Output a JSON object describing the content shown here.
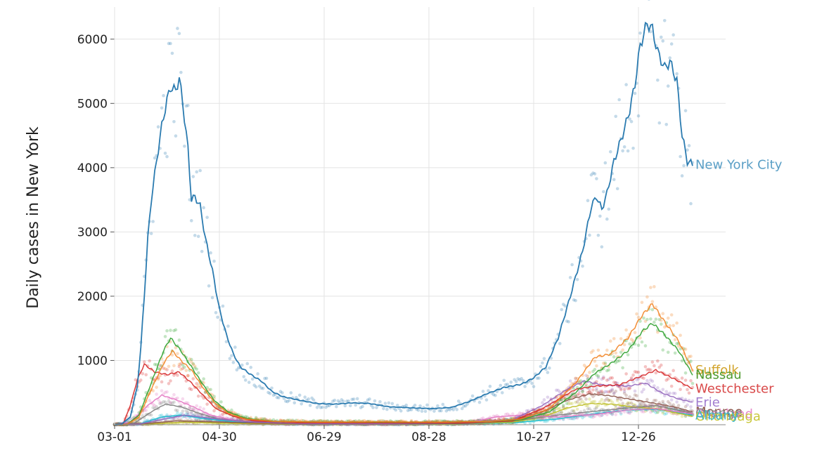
{
  "chart_data": {
    "type": "line",
    "title": "",
    "xlabel": "",
    "ylabel": "Daily cases in New York",
    "grid": true,
    "legend": "direct-labels-right",
    "x_start": "2020-03-01",
    "x_end": "2021-01-31",
    "ylim": [
      0,
      6500
    ],
    "x_ticks": [
      "03-01",
      "04-30",
      "06-29",
      "08-28",
      "10-27",
      "12-26"
    ],
    "y_ticks": [
      1000,
      2000,
      3000,
      4000,
      5000,
      6000
    ],
    "series": [
      {
        "name": "New York City",
        "color": "#2b7bb0",
        "label_color": "#5a9fc6",
        "points": [
          [
            "2020-03-01",
            0
          ],
          [
            "2020-03-05",
            10
          ],
          [
            "2020-03-10",
            120
          ],
          [
            "2020-03-14",
            600
          ],
          [
            "2020-03-16",
            1200
          ],
          [
            "2020-03-18",
            2000
          ],
          [
            "2020-03-20",
            2900
          ],
          [
            "2020-03-22",
            3500
          ],
          [
            "2020-03-25",
            4100
          ],
          [
            "2020-03-28",
            4650
          ],
          [
            "2020-03-31",
            5050
          ],
          [
            "2020-04-02",
            5250
          ],
          [
            "2020-04-05",
            5200
          ],
          [
            "2020-04-07",
            5400
          ],
          [
            "2020-04-09",
            5000
          ],
          [
            "2020-04-12",
            4300
          ],
          [
            "2020-04-14",
            3500
          ],
          [
            "2020-04-16",
            3550
          ],
          [
            "2020-04-19",
            3400
          ],
          [
            "2020-04-22",
            2900
          ],
          [
            "2020-04-26",
            2400
          ],
          [
            "2020-04-30",
            1800
          ],
          [
            "2020-05-04",
            1400
          ],
          [
            "2020-05-08",
            1100
          ],
          [
            "2020-05-12",
            900
          ],
          [
            "2020-05-18",
            780
          ],
          [
            "2020-05-24",
            680
          ],
          [
            "2020-05-30",
            520
          ],
          [
            "2020-06-05",
            440
          ],
          [
            "2020-06-15",
            380
          ],
          [
            "2020-06-25",
            330
          ],
          [
            "2020-07-05",
            320
          ],
          [
            "2020-07-15",
            340
          ],
          [
            "2020-07-25",
            330
          ],
          [
            "2020-08-05",
            280
          ],
          [
            "2020-08-20",
            260
          ],
          [
            "2020-08-30",
            250
          ],
          [
            "2020-09-10",
            270
          ],
          [
            "2020-09-20",
            360
          ],
          [
            "2020-09-30",
            480
          ],
          [
            "2020-10-10",
            580
          ],
          [
            "2020-10-20",
            630
          ],
          [
            "2020-10-27",
            730
          ],
          [
            "2020-11-03",
            900
          ],
          [
            "2020-11-10",
            1350
          ],
          [
            "2020-11-17",
            2000
          ],
          [
            "2020-11-24",
            2700
          ],
          [
            "2020-11-29",
            3400
          ],
          [
            "2020-12-02",
            3550
          ],
          [
            "2020-12-05",
            3350
          ],
          [
            "2020-12-08",
            3600
          ],
          [
            "2020-12-12",
            4100
          ],
          [
            "2020-12-15",
            4350
          ],
          [
            "2020-12-18",
            4600
          ],
          [
            "2020-12-21",
            4900
          ],
          [
            "2020-12-24",
            5300
          ],
          [
            "2020-12-27",
            5900
          ],
          [
            "2020-12-31",
            6250
          ],
          [
            "2021-01-03",
            6150
          ],
          [
            "2021-01-06",
            5800
          ],
          [
            "2021-01-10",
            5550
          ],
          [
            "2021-01-13",
            5650
          ],
          [
            "2021-01-17",
            5350
          ],
          [
            "2021-01-20",
            4500
          ],
          [
            "2021-01-23",
            4100
          ],
          [
            "2021-01-26",
            4050
          ]
        ]
      },
      {
        "name": "Suffolk",
        "color": "#f28322",
        "label_color": "#d2a32a",
        "points": [
          [
            "2020-03-01",
            0
          ],
          [
            "2020-03-08",
            5
          ],
          [
            "2020-03-15",
            120
          ],
          [
            "2020-03-22",
            550
          ],
          [
            "2020-03-29",
            950
          ],
          [
            "2020-04-03",
            1150
          ],
          [
            "2020-04-08",
            1000
          ],
          [
            "2020-04-14",
            850
          ],
          [
            "2020-04-20",
            600
          ],
          [
            "2020-04-27",
            350
          ],
          [
            "2020-05-05",
            180
          ],
          [
            "2020-05-15",
            90
          ],
          [
            "2020-06-01",
            50
          ],
          [
            "2020-07-01",
            40
          ],
          [
            "2020-08-01",
            45
          ],
          [
            "2020-09-01",
            40
          ],
          [
            "2020-10-01",
            50
          ],
          [
            "2020-10-20",
            90
          ],
          [
            "2020-11-05",
            250
          ],
          [
            "2020-11-20",
            650
          ],
          [
            "2020-12-01",
            1050
          ],
          [
            "2020-12-10",
            1100
          ],
          [
            "2020-12-20",
            1350
          ],
          [
            "2020-12-28",
            1700
          ],
          [
            "2021-01-03",
            1880
          ],
          [
            "2021-01-10",
            1600
          ],
          [
            "2021-01-18",
            1300
          ],
          [
            "2021-01-26",
            850
          ]
        ]
      },
      {
        "name": "Nassau",
        "color": "#2ca02c",
        "label_color": "#4f9a2e",
        "points": [
          [
            "2020-03-01",
            0
          ],
          [
            "2020-03-08",
            5
          ],
          [
            "2020-03-15",
            150
          ],
          [
            "2020-03-22",
            650
          ],
          [
            "2020-03-29",
            1150
          ],
          [
            "2020-04-02",
            1350
          ],
          [
            "2020-04-08",
            1150
          ],
          [
            "2020-04-14",
            900
          ],
          [
            "2020-04-20",
            650
          ],
          [
            "2020-04-27",
            380
          ],
          [
            "2020-05-05",
            200
          ],
          [
            "2020-05-15",
            100
          ],
          [
            "2020-06-01",
            50
          ],
          [
            "2020-07-01",
            40
          ],
          [
            "2020-08-01",
            40
          ],
          [
            "2020-09-01",
            40
          ],
          [
            "2020-10-01",
            50
          ],
          [
            "2020-10-20",
            80
          ],
          [
            "2020-11-05",
            200
          ],
          [
            "2020-11-20",
            500
          ],
          [
            "2020-12-01",
            800
          ],
          [
            "2020-12-10",
            950
          ],
          [
            "2020-12-20",
            1150
          ],
          [
            "2020-12-28",
            1450
          ],
          [
            "2021-01-03",
            1580
          ],
          [
            "2021-01-10",
            1400
          ],
          [
            "2021-01-18",
            1150
          ],
          [
            "2021-01-26",
            780
          ]
        ]
      },
      {
        "name": "Westchester",
        "color": "#d62728",
        "label_color": "#d94a4a",
        "points": [
          [
            "2020-03-01",
            0
          ],
          [
            "2020-03-06",
            20
          ],
          [
            "2020-03-10",
            300
          ],
          [
            "2020-03-14",
            700
          ],
          [
            "2020-03-18",
            940
          ],
          [
            "2020-03-24",
            820
          ],
          [
            "2020-03-31",
            780
          ],
          [
            "2020-04-07",
            820
          ],
          [
            "2020-04-14",
            650
          ],
          [
            "2020-04-21",
            450
          ],
          [
            "2020-04-28",
            250
          ],
          [
            "2020-05-08",
            130
          ],
          [
            "2020-05-20",
            60
          ],
          [
            "2020-06-15",
            30
          ],
          [
            "2020-08-01",
            30
          ],
          [
            "2020-09-15",
            30
          ],
          [
            "2020-10-15",
            60
          ],
          [
            "2020-11-01",
            250
          ],
          [
            "2020-11-20",
            550
          ],
          [
            "2020-12-01",
            600
          ],
          [
            "2020-12-15",
            620
          ],
          [
            "2020-12-28",
            760
          ],
          [
            "2021-01-05",
            850
          ],
          [
            "2021-01-15",
            720
          ],
          [
            "2021-01-26",
            560
          ]
        ]
      },
      {
        "name": "Erie",
        "color": "#9467bd",
        "label_color": "#a17ccf",
        "points": [
          [
            "2020-03-01",
            0
          ],
          [
            "2020-03-15",
            10
          ],
          [
            "2020-03-28",
            80
          ],
          [
            "2020-04-10",
            150
          ],
          [
            "2020-04-25",
            100
          ],
          [
            "2020-05-15",
            50
          ],
          [
            "2020-06-15",
            20
          ],
          [
            "2020-08-01",
            20
          ],
          [
            "2020-09-15",
            30
          ],
          [
            "2020-10-15",
            80
          ],
          [
            "2020-11-01",
            300
          ],
          [
            "2020-11-15",
            550
          ],
          [
            "2020-11-25",
            680
          ],
          [
            "2020-12-05",
            620
          ],
          [
            "2020-12-20",
            600
          ],
          [
            "2020-12-30",
            650
          ],
          [
            "2021-01-08",
            500
          ],
          [
            "2021-01-18",
            400
          ],
          [
            "2021-01-26",
            350
          ]
        ]
      },
      {
        "name": "Monroe",
        "color": "#8c564b",
        "label_color": "#8c564b",
        "points": [
          [
            "2020-03-01",
            0
          ],
          [
            "2020-03-20",
            20
          ],
          [
            "2020-04-05",
            60
          ],
          [
            "2020-04-20",
            50
          ],
          [
            "2020-05-15",
            30
          ],
          [
            "2020-06-15",
            15
          ],
          [
            "2020-08-01",
            15
          ],
          [
            "2020-09-15",
            20
          ],
          [
            "2020-10-15",
            60
          ],
          [
            "2020-11-01",
            200
          ],
          [
            "2020-11-15",
            380
          ],
          [
            "2020-11-28",
            480
          ],
          [
            "2020-12-10",
            450
          ],
          [
            "2020-12-25",
            380
          ],
          [
            "2021-01-05",
            330
          ],
          [
            "2021-01-15",
            280
          ],
          [
            "2021-01-26",
            200
          ]
        ]
      },
      {
        "name": "Rockland",
        "color": "#e377c2",
        "label_color": "#e58ac9",
        "points": [
          [
            "2020-03-01",
            0
          ],
          [
            "2020-03-10",
            40
          ],
          [
            "2020-03-20",
            300
          ],
          [
            "2020-03-28",
            460
          ],
          [
            "2020-04-06",
            380
          ],
          [
            "2020-04-15",
            280
          ],
          [
            "2020-04-25",
            150
          ],
          [
            "2020-05-10",
            60
          ],
          [
            "2020-06-01",
            20
          ],
          [
            "2020-08-01",
            15
          ],
          [
            "2020-09-20",
            30
          ],
          [
            "2020-10-05",
            120
          ],
          [
            "2020-10-20",
            150
          ],
          [
            "2020-11-10",
            120
          ],
          [
            "2020-12-01",
            160
          ],
          [
            "2020-12-20",
            230
          ],
          [
            "2021-01-05",
            250
          ],
          [
            "2021-01-26",
            170
          ]
        ]
      },
      {
        "name": "Orange",
        "color": "#7f7f7f",
        "label_color": "#8a8a8a",
        "points": [
          [
            "2020-03-01",
            0
          ],
          [
            "2020-03-12",
            20
          ],
          [
            "2020-03-22",
            200
          ],
          [
            "2020-03-30",
            320
          ],
          [
            "2020-04-08",
            280
          ],
          [
            "2020-04-18",
            180
          ],
          [
            "2020-04-28",
            100
          ],
          [
            "2020-05-15",
            50
          ],
          [
            "2020-06-15",
            15
          ],
          [
            "2020-08-01",
            15
          ],
          [
            "2020-09-20",
            20
          ],
          [
            "2020-10-15",
            60
          ],
          [
            "2020-11-10",
            150
          ],
          [
            "2020-12-01",
            210
          ],
          [
            "2020-12-20",
            260
          ],
          [
            "2021-01-05",
            300
          ],
          [
            "2021-01-26",
            180
          ]
        ]
      },
      {
        "name": "Onondaga",
        "color": "#bcbd22",
        "label_color": "#c9c73a",
        "points": [
          [
            "2020-03-01",
            0
          ],
          [
            "2020-03-20",
            10
          ],
          [
            "2020-04-10",
            40
          ],
          [
            "2020-05-10",
            20
          ],
          [
            "2020-06-15",
            10
          ],
          [
            "2020-08-01",
            10
          ],
          [
            "2020-09-15",
            15
          ],
          [
            "2020-10-15",
            40
          ],
          [
            "2020-11-01",
            120
          ],
          [
            "2020-11-15",
            260
          ],
          [
            "2020-11-28",
            330
          ],
          [
            "2020-12-10",
            320
          ],
          [
            "2020-12-22",
            280
          ],
          [
            "2021-01-05",
            250
          ],
          [
            "2021-01-26",
            130
          ]
        ]
      },
      {
        "name": "Albany",
        "color": "#17becf",
        "label_color": "#3fb9c9",
        "points": [
          [
            "2020-03-01",
            0
          ],
          [
            "2020-03-15",
            10
          ],
          [
            "2020-03-28",
            120
          ],
          [
            "2020-04-08",
            150
          ],
          [
            "2020-04-20",
            100
          ],
          [
            "2020-05-10",
            40
          ],
          [
            "2020-06-15",
            15
          ],
          [
            "2020-08-01",
            10
          ],
          [
            "2020-09-15",
            15
          ],
          [
            "2020-10-15",
            30
          ],
          [
            "2020-11-10",
            90
          ],
          [
            "2020-12-01",
            170
          ],
          [
            "2020-12-20",
            230
          ],
          [
            "2021-01-05",
            240
          ],
          [
            "2021-01-15",
            200
          ],
          [
            "2021-01-26",
            150
          ]
        ]
      }
    ]
  }
}
